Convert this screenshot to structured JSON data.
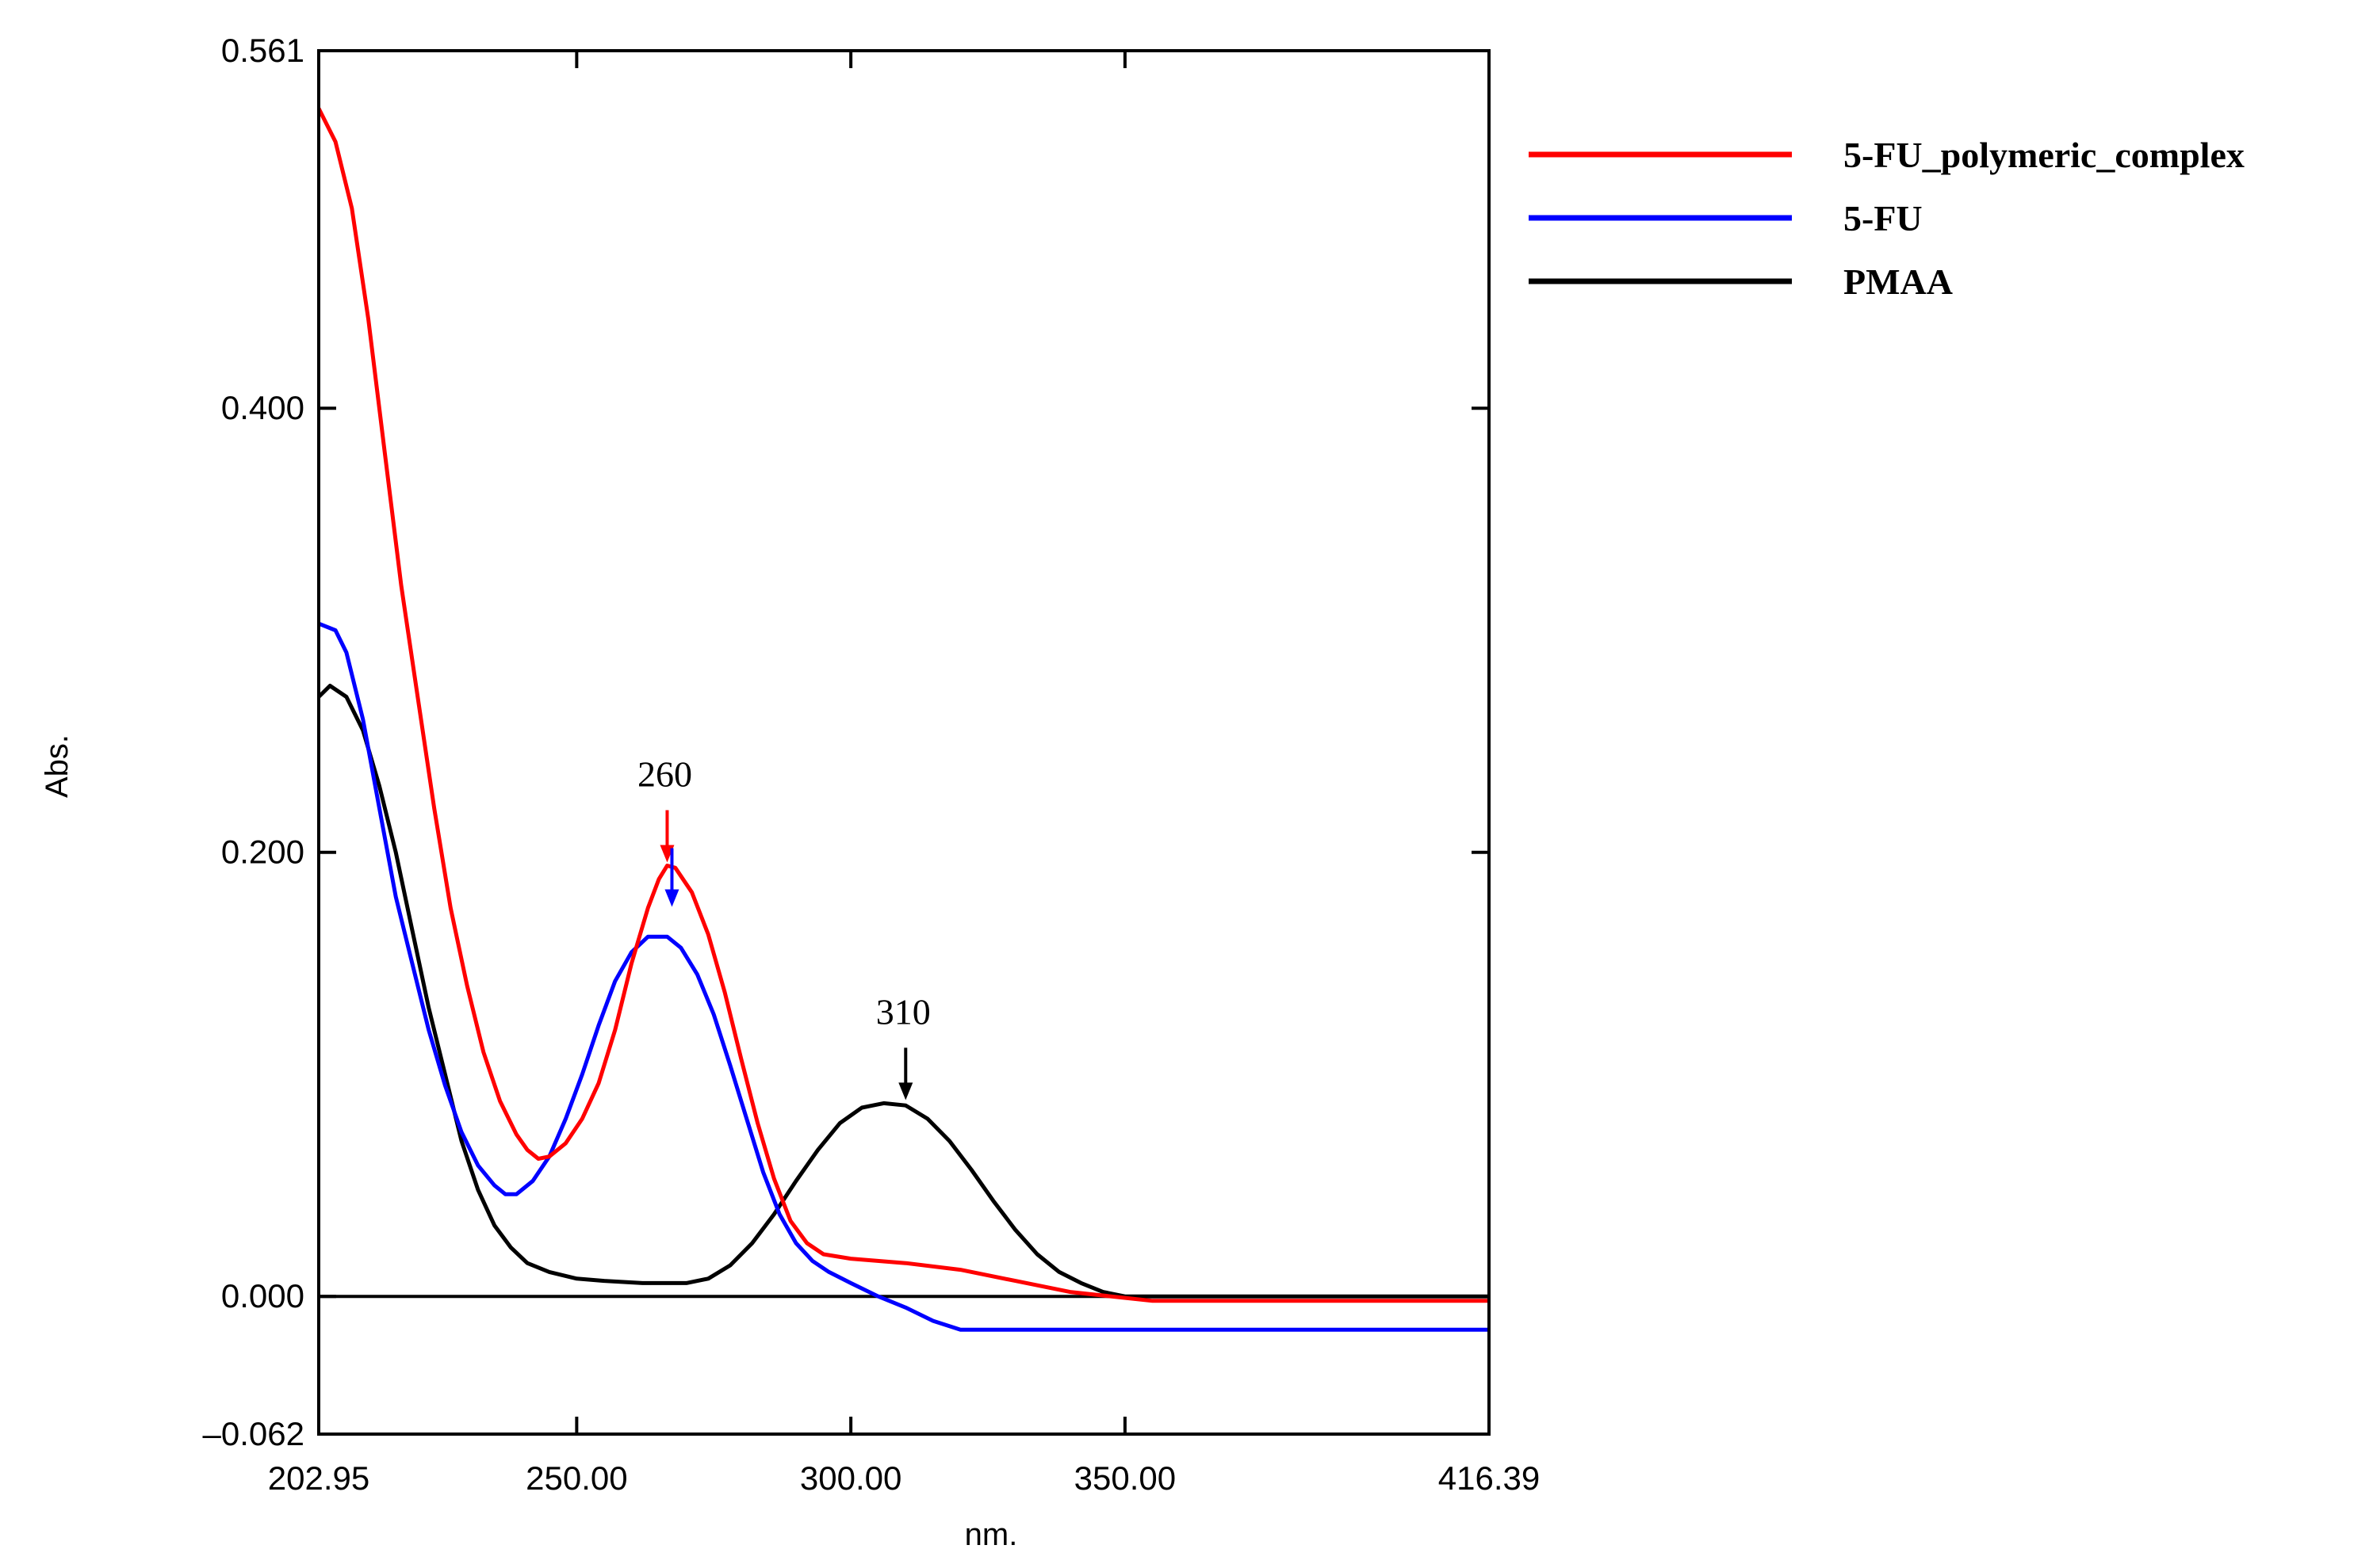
{
  "chart_data": {
    "type": "line",
    "title": "",
    "xlabel": "nm.",
    "ylabel": "Abs.",
    "xlim": [
      202.95,
      416.39
    ],
    "ylim": [
      -0.062,
      0.561
    ],
    "x_tick_labels": [
      {
        "value": 202.95,
        "label": "202.95"
      },
      {
        "value": 250.0,
        "label": "250.00"
      },
      {
        "value": 300.0,
        "label": "300.00"
      },
      {
        "value": 350.0,
        "label": "350.00"
      },
      {
        "value": 416.39,
        "label": "416.39"
      }
    ],
    "y_tick_labels": [
      {
        "value": 0.561,
        "label": "0.561"
      },
      {
        "value": 0.4,
        "label": "0.400"
      },
      {
        "value": 0.2,
        "label": "0.200"
      },
      {
        "value": 0.0,
        "label": "0.000"
      },
      {
        "value": -0.062,
        "label": "–0.062"
      }
    ],
    "legend_position": "right-top, outside plot",
    "series": [
      {
        "name": "5-FU_polymeric_complex",
        "color": "#ff0000",
        "points": [
          [
            202.95,
            0.535
          ],
          [
            206,
            0.52
          ],
          [
            209,
            0.49
          ],
          [
            212,
            0.44
          ],
          [
            215,
            0.38
          ],
          [
            218,
            0.32
          ],
          [
            221,
            0.27
          ],
          [
            224,
            0.22
          ],
          [
            227,
            0.175
          ],
          [
            230,
            0.14
          ],
          [
            233,
            0.11
          ],
          [
            236,
            0.088
          ],
          [
            239,
            0.073
          ],
          [
            241,
            0.066
          ],
          [
            243,
            0.062
          ],
          [
            245,
            0.063
          ],
          [
            248,
            0.069
          ],
          [
            251,
            0.08
          ],
          [
            254,
            0.096
          ],
          [
            257,
            0.12
          ],
          [
            260,
            0.15
          ],
          [
            263,
            0.175
          ],
          [
            265,
            0.188
          ],
          [
            266.5,
            0.194
          ],
          [
            268,
            0.193
          ],
          [
            271,
            0.182
          ],
          [
            274,
            0.163
          ],
          [
            277,
            0.137
          ],
          [
            280,
            0.107
          ],
          [
            283,
            0.078
          ],
          [
            286,
            0.053
          ],
          [
            289,
            0.034
          ],
          [
            292,
            0.024
          ],
          [
            295,
            0.019
          ],
          [
            300,
            0.017
          ],
          [
            310,
            0.015
          ],
          [
            320,
            0.012
          ],
          [
            330,
            0.007
          ],
          [
            340,
            0.002
          ],
          [
            355,
            -0.002
          ],
          [
            416.39,
            -0.002
          ]
        ]
      },
      {
        "name": "5-FU",
        "color": "#0000ff",
        "points": [
          [
            202.95,
            0.303
          ],
          [
            206,
            0.3
          ],
          [
            208,
            0.29
          ],
          [
            211,
            0.26
          ],
          [
            214,
            0.22
          ],
          [
            217,
            0.18
          ],
          [
            220,
            0.15
          ],
          [
            223,
            0.12
          ],
          [
            226,
            0.095
          ],
          [
            229,
            0.074
          ],
          [
            232,
            0.059
          ],
          [
            235,
            0.05
          ],
          [
            237,
            0.046
          ],
          [
            239,
            0.046
          ],
          [
            242,
            0.052
          ],
          [
            245,
            0.063
          ],
          [
            248,
            0.08
          ],
          [
            251,
            0.1
          ],
          [
            254,
            0.122
          ],
          [
            257,
            0.142
          ],
          [
            260,
            0.155
          ],
          [
            263,
            0.162
          ],
          [
            266.5,
            0.162
          ],
          [
            269,
            0.157
          ],
          [
            272,
            0.145
          ],
          [
            275,
            0.127
          ],
          [
            278,
            0.104
          ],
          [
            281,
            0.08
          ],
          [
            284,
            0.056
          ],
          [
            287,
            0.037
          ],
          [
            290,
            0.024
          ],
          [
            293,
            0.016
          ],
          [
            296,
            0.011
          ],
          [
            300,
            0.006
          ],
          [
            305,
            0.0
          ],
          [
            310,
            -0.005
          ],
          [
            315,
            -0.011
          ],
          [
            320,
            -0.015
          ],
          [
            325,
            -0.015
          ],
          [
            416.39,
            -0.015
          ]
        ]
      },
      {
        "name": "PMAA",
        "color": "#000000",
        "points": [
          [
            202.95,
            0.27
          ],
          [
            205,
            0.275
          ],
          [
            208,
            0.27
          ],
          [
            211,
            0.255
          ],
          [
            214,
            0.23
          ],
          [
            217,
            0.2
          ],
          [
            220,
            0.165
          ],
          [
            223,
            0.13
          ],
          [
            226,
            0.1
          ],
          [
            229,
            0.07
          ],
          [
            232,
            0.048
          ],
          [
            235,
            0.032
          ],
          [
            238,
            0.022
          ],
          [
            241,
            0.015
          ],
          [
            245,
            0.011
          ],
          [
            250,
            0.008
          ],
          [
            255,
            0.007
          ],
          [
            262,
            0.006
          ],
          [
            270,
            0.006
          ],
          [
            274,
            0.008
          ],
          [
            278,
            0.014
          ],
          [
            282,
            0.024
          ],
          [
            286,
            0.037
          ],
          [
            290,
            0.052
          ],
          [
            294,
            0.066
          ],
          [
            298,
            0.078
          ],
          [
            302,
            0.085
          ],
          [
            306,
            0.087
          ],
          [
            310,
            0.086
          ],
          [
            314,
            0.08
          ],
          [
            318,
            0.07
          ],
          [
            322,
            0.057
          ],
          [
            326,
            0.043
          ],
          [
            330,
            0.03
          ],
          [
            334,
            0.019
          ],
          [
            338,
            0.011
          ],
          [
            342,
            0.006
          ],
          [
            346,
            0.002
          ],
          [
            350,
            0.0
          ],
          [
            416.39,
            0.0
          ]
        ]
      }
    ],
    "annotations": [
      {
        "label": "260",
        "x": 266.5,
        "y": 0.194,
        "arrow_colors": [
          "#ff0000",
          "#0000ff"
        ]
      },
      {
        "label": "310",
        "x": 310.0,
        "y": 0.087,
        "arrow_colors": [
          "#000000"
        ]
      }
    ]
  }
}
